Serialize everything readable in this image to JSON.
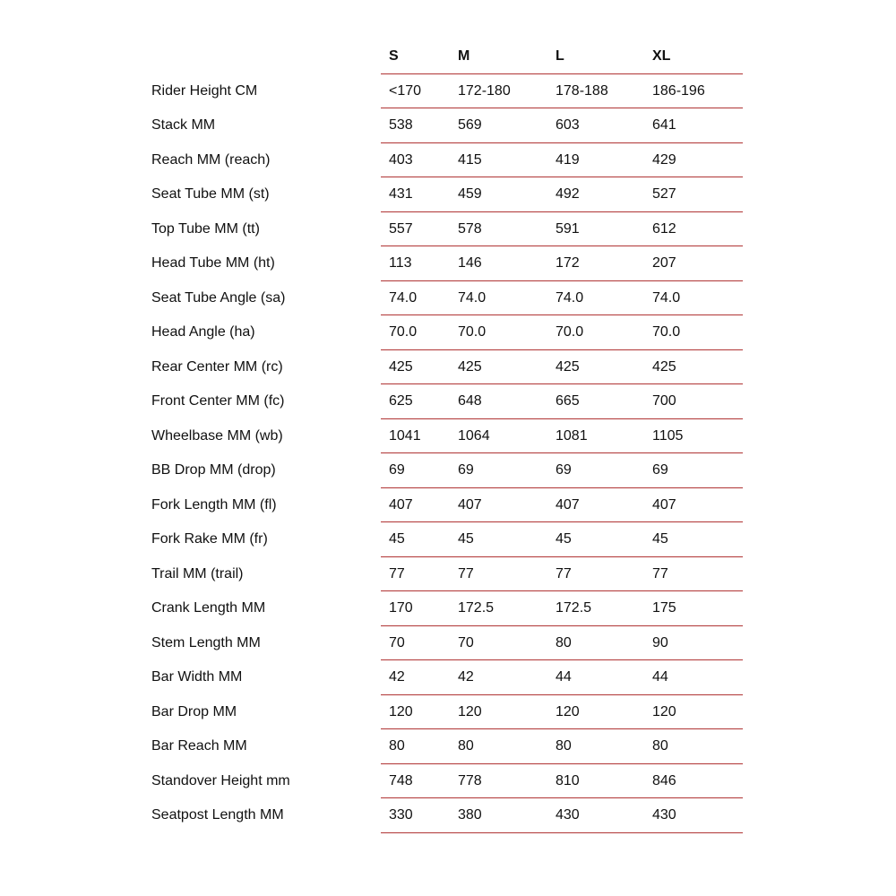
{
  "table": {
    "columns": [
      "S",
      "M",
      "L",
      "XL"
    ],
    "line_color": "#b03434",
    "rows": [
      {
        "label": "Rider Height CM",
        "values": [
          "<170",
          "172-180",
          "178-188",
          "186-196"
        ]
      },
      {
        "label": "Stack MM",
        "values": [
          "538",
          "569",
          "603",
          "641"
        ]
      },
      {
        "label": "Reach MM (reach)",
        "values": [
          "403",
          "415",
          "419",
          "429"
        ]
      },
      {
        "label": "Seat Tube MM (st)",
        "values": [
          "431",
          "459",
          "492",
          "527"
        ]
      },
      {
        "label": "Top Tube MM (tt)",
        "values": [
          "557",
          "578",
          "591",
          "612"
        ]
      },
      {
        "label": "Head Tube MM (ht)",
        "values": [
          "113",
          "146",
          "172",
          "207"
        ]
      },
      {
        "label": "Seat Tube Angle (sa)",
        "values": [
          "74.0",
          "74.0",
          "74.0",
          "74.0"
        ]
      },
      {
        "label": "Head Angle (ha)",
        "values": [
          "70.0",
          "70.0",
          "70.0",
          "70.0"
        ]
      },
      {
        "label": "Rear Center MM (rc)",
        "values": [
          "425",
          "425",
          "425",
          "425"
        ]
      },
      {
        "label": "Front Center MM (fc)",
        "values": [
          "625",
          "648",
          "665",
          "700"
        ]
      },
      {
        "label": "Wheelbase MM (wb)",
        "values": [
          "1041",
          "1064",
          "1081",
          "1105"
        ]
      },
      {
        "label": "BB Drop MM (drop)",
        "values": [
          "69",
          "69",
          "69",
          "69"
        ]
      },
      {
        "label": "Fork Length MM (fl)",
        "values": [
          "407",
          "407",
          "407",
          "407"
        ]
      },
      {
        "label": "Fork Rake MM (fr)",
        "values": [
          "45",
          "45",
          "45",
          "45"
        ]
      },
      {
        "label": "Trail MM (trail)",
        "values": [
          "77",
          "77",
          "77",
          "77"
        ]
      },
      {
        "label": "Crank Length MM",
        "values": [
          "170",
          "172.5",
          "172.5",
          "175"
        ]
      },
      {
        "label": "Stem Length MM",
        "values": [
          "70",
          "70",
          "80",
          "90"
        ]
      },
      {
        "label": "Bar Width MM",
        "values": [
          "42",
          "42",
          "44",
          "44"
        ]
      },
      {
        "label": "Bar Drop MM",
        "values": [
          "120",
          "120",
          "120",
          "120"
        ]
      },
      {
        "label": "Bar Reach MM",
        "values": [
          "80",
          "80",
          "80",
          "80"
        ]
      },
      {
        "label": "Standover Height mm",
        "values": [
          "748",
          "778",
          "810",
          "846"
        ]
      },
      {
        "label": "Seatpost Length MM",
        "values": [
          "330",
          "380",
          "430",
          "430"
        ]
      }
    ]
  }
}
